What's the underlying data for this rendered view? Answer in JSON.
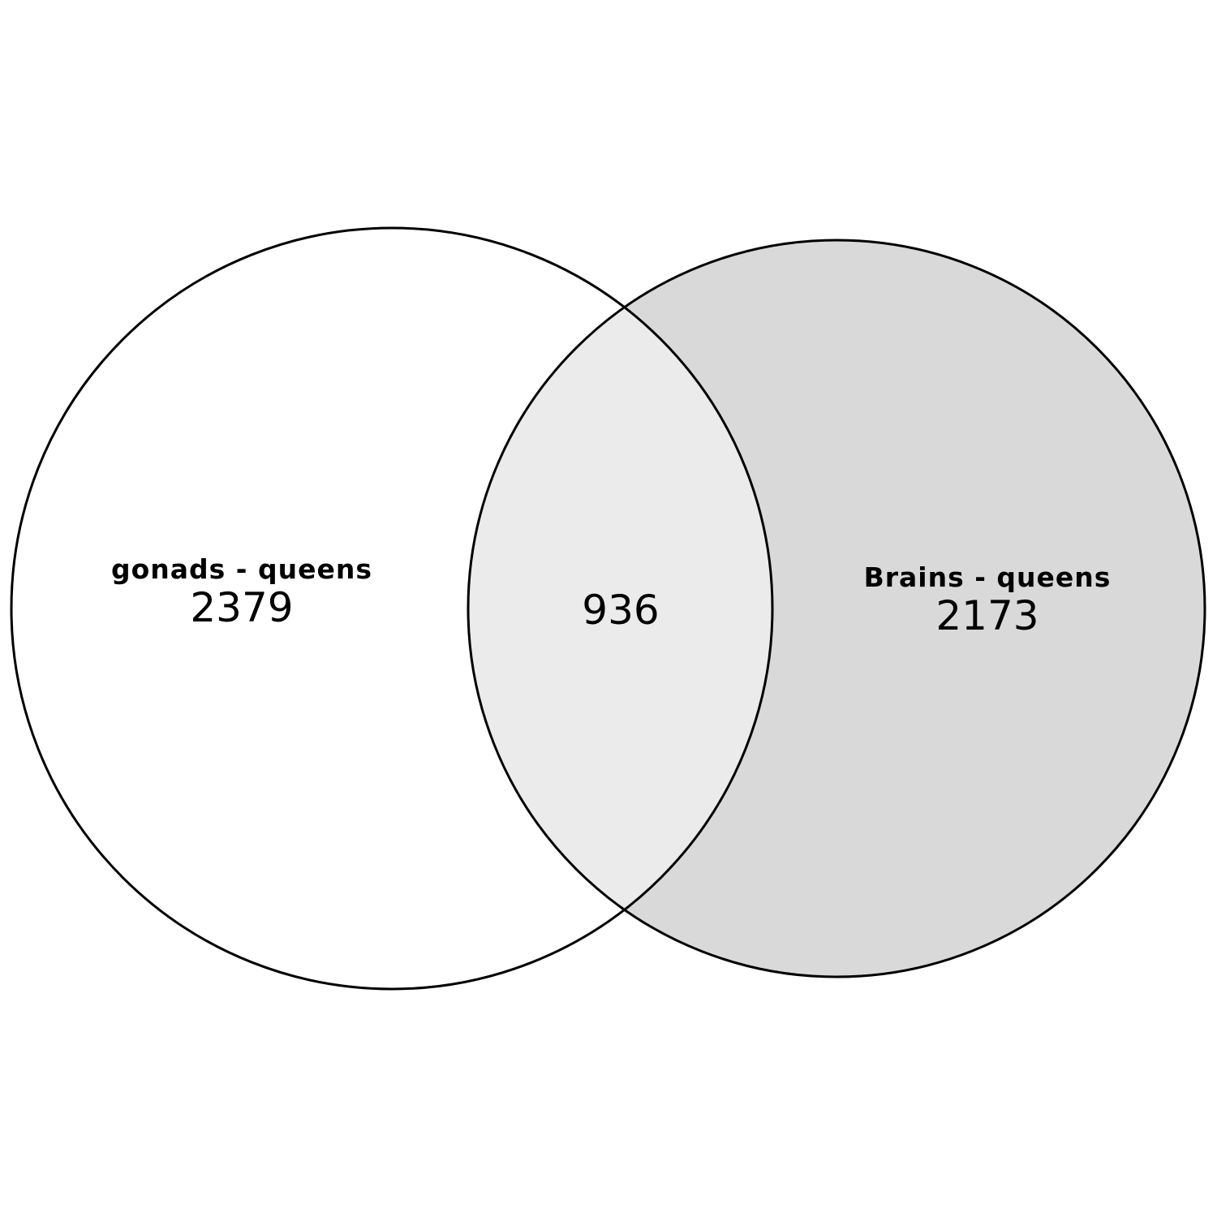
{
  "diagram": {
    "type": "venn",
    "sets": [
      {
        "name": "gonads - queens",
        "only_count": "2379",
        "fill": "#ffffff"
      },
      {
        "name": "Brains - queens",
        "only_count": "2173",
        "fill": "#d9d9d9"
      }
    ],
    "intersection": {
      "count": "936",
      "fill": "#ebebeb"
    },
    "outline_color": "#000000"
  }
}
